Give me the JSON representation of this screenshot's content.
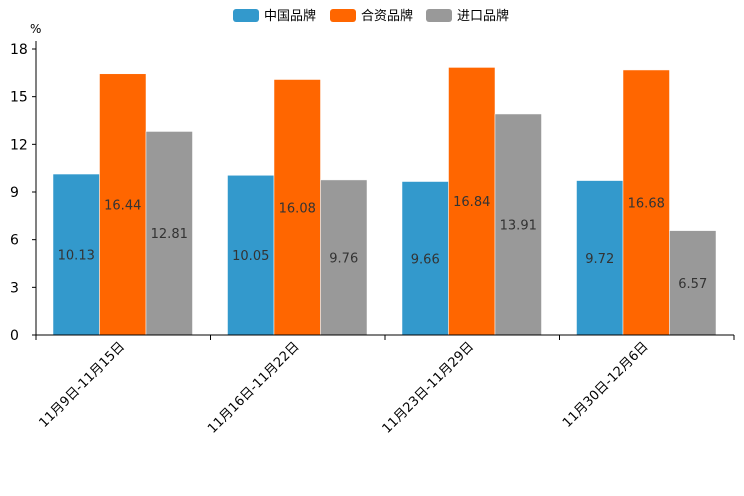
{
  "chart_data": {
    "type": "bar",
    "unit": "%",
    "categories": [
      "11月9日-11月15日",
      "11月16日-11月22日",
      "11月23日-11月29日",
      "11月30日-12月6日"
    ],
    "series": [
      {
        "name": "中国品牌",
        "color": "#3399cc",
        "values": [
          10.13,
          10.05,
          9.66,
          9.72
        ]
      },
      {
        "name": "合资品牌",
        "color": "#ff6600",
        "values": [
          16.44,
          16.08,
          16.84,
          16.68
        ]
      },
      {
        "name": "进口品牌",
        "color": "#999999",
        "values": [
          12.81,
          9.76,
          13.91,
          6.57
        ]
      }
    ],
    "ylim": [
      0,
      18
    ],
    "yticks": [
      0,
      3,
      6,
      9,
      12,
      15,
      18
    ],
    "legend_position": "top-center",
    "grid": false
  }
}
